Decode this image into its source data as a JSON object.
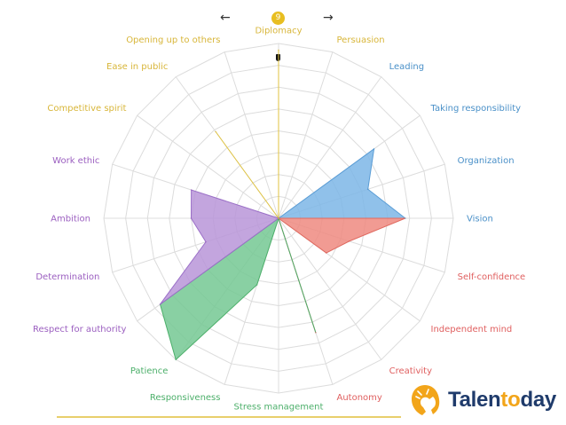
{
  "nav": {
    "prev": "←",
    "next": "→",
    "page": "9",
    "prev_icon": "arrow-left-icon",
    "next_icon": "arrow-right-icon"
  },
  "brand": {
    "part1": "Talen",
    "part2": "to",
    "part3": "day",
    "logo_icon": "lion-head-icon",
    "color_dark": "#1f3b6b",
    "color_accent": "#f2a51a"
  },
  "chart_data": {
    "type": "radar",
    "title": "",
    "rings": 8,
    "max": 8,
    "grid": true,
    "axes": [
      {
        "label": "Diplomacy",
        "value": 7.7,
        "color": "#d8b63a"
      },
      {
        "label": "Persuasion",
        "value": 0,
        "color": "#d8b63a"
      },
      {
        "label": "Leading",
        "value": 0,
        "color": "#4a90c8"
      },
      {
        "label": "Taking responsibility",
        "value": 5.4,
        "color": "#4a90c8"
      },
      {
        "label": "Organization",
        "value": 4.3,
        "color": "#4a90c8"
      },
      {
        "label": "Vision",
        "value": 5.8,
        "color": "#4a90c8"
      },
      {
        "label": "Self-confidence",
        "value": 3.4,
        "color": "#e06060"
      },
      {
        "label": "Independent mind",
        "value": 2.7,
        "color": "#e06060"
      },
      {
        "label": "Creativity",
        "value": 0,
        "color": "#e06060"
      },
      {
        "label": "Autonomy",
        "value": 5.5,
        "color": "#e06060"
      },
      {
        "label": "Stress management",
        "value": 0,
        "color": "#4caf6a"
      },
      {
        "label": "Responsiveness",
        "value": 3.2,
        "color": "#4caf6a"
      },
      {
        "label": "Patience",
        "value": 8.0,
        "color": "#4caf6a"
      },
      {
        "label": "Respect for authority",
        "value": 6.7,
        "color": "#9b5fc0"
      },
      {
        "label": "Determination",
        "value": 3.5,
        "color": "#9b5fc0"
      },
      {
        "label": "Ambition",
        "value": 4.0,
        "color": "#9b5fc0"
      },
      {
        "label": "Work ethic",
        "value": 4.2,
        "color": "#9b5fc0"
      },
      {
        "label": "Competitive spirit",
        "value": 0,
        "color": "#d8b63a"
      },
      {
        "label": "Ease in public",
        "value": 4.9,
        "color": "#d8b63a"
      },
      {
        "label": "Opening up to others",
        "value": 0,
        "color": "#d8b63a"
      }
    ],
    "groups": [
      {
        "name": "yellow",
        "axes": [
          17,
          18,
          19,
          0,
          1
        ],
        "fill": "#f0d75e",
        "stroke": "#e0c340"
      },
      {
        "name": "blue",
        "axes": [
          2,
          3,
          4,
          5
        ],
        "fill": "#7cb6e6",
        "stroke": "#5a9dd6"
      },
      {
        "name": "red",
        "axes": [
          5,
          6,
          7,
          8,
          9
        ],
        "fill": "#ee8a80",
        "stroke": "#e06a60"
      },
      {
        "name": "green",
        "axes": [
          9,
          10,
          11,
          12,
          13
        ],
        "fill": "#74c893",
        "stroke": "#4caf6a"
      },
      {
        "name": "purple",
        "axes": [
          13,
          14,
          15,
          16,
          17
        ],
        "fill": "#b995d8",
        "stroke": "#9b6fc8"
      }
    ]
  }
}
